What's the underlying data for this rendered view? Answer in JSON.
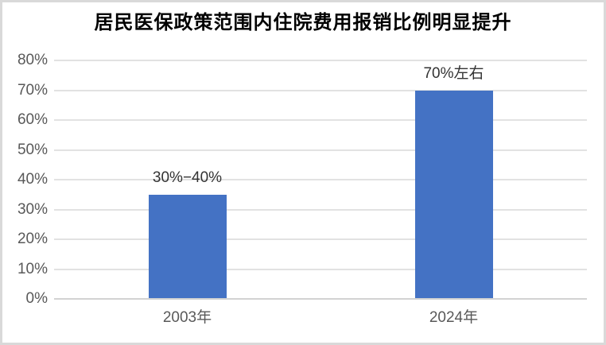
{
  "title": "居民医保政策范围内住院费用报销比例明显提升",
  "colors": {
    "bar": "#4472C4",
    "gridline": "#E2E2E2",
    "baseline": "#D2D2D2",
    "tick_label": "#595959",
    "category_label": "#595959",
    "data_label": "#333333",
    "title_text": "#000000",
    "frame_border": "#D9D9D9",
    "background": "#FFFFFF"
  },
  "chart_data": {
    "type": "bar",
    "title": "居民医保政策范围内住院费用报销比例明显提升",
    "categories": [
      "2003年",
      "2024年"
    ],
    "values": [
      35,
      70
    ],
    "data_labels": [
      "30%−40%",
      "70%左右"
    ],
    "xlabel": "",
    "ylabel": "",
    "ylim": [
      0,
      80
    ],
    "y_tick_step": 10,
    "y_tick_labels": [
      "0%",
      "10%",
      "20%",
      "30%",
      "40%",
      "50%",
      "60%",
      "70%",
      "80%"
    ],
    "grid": true,
    "legend": false
  }
}
